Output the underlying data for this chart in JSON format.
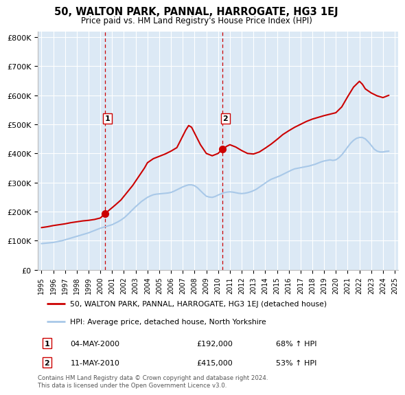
{
  "title": "50, WALTON PARK, PANNAL, HARROGATE, HG3 1EJ",
  "subtitle": "Price paid vs. HM Land Registry's House Price Index (HPI)",
  "ylabel_ticks": [
    "£0",
    "£100K",
    "£200K",
    "£300K",
    "£400K",
    "£500K",
    "£600K",
    "£700K",
    "£800K"
  ],
  "ytick_values": [
    0,
    100000,
    200000,
    300000,
    400000,
    500000,
    600000,
    700000,
    800000
  ],
  "ylim": [
    0,
    820000
  ],
  "xlim_start": 1994.7,
  "xlim_end": 2025.3,
  "sale1_year": 2000.37,
  "sale1_price": 192000,
  "sale1_label": "1",
  "sale1_date": "04-MAY-2000",
  "sale1_hpi": "68% ↑ HPI",
  "sale2_year": 2010.37,
  "sale2_price": 415000,
  "sale2_label": "2",
  "sale2_date": "11-MAY-2010",
  "sale2_hpi": "53% ↑ HPI",
  "hpi_color": "#a8c8e8",
  "price_color": "#cc0000",
  "sale_dot_color": "#cc0000",
  "background_color": "#dce9f5",
  "grid_color": "#ffffff",
  "legend_label_price": "50, WALTON PARK, PANNAL, HARROGATE, HG3 1EJ (detached house)",
  "legend_label_hpi": "HPI: Average price, detached house, North Yorkshire",
  "footer": "Contains HM Land Registry data © Crown copyright and database right 2024.\nThis data is licensed under the Open Government Licence v3.0.",
  "hpi_data_x": [
    1995.0,
    1995.25,
    1995.5,
    1995.75,
    1996.0,
    1996.25,
    1996.5,
    1996.75,
    1997.0,
    1997.25,
    1997.5,
    1997.75,
    1998.0,
    1998.25,
    1998.5,
    1998.75,
    1999.0,
    1999.25,
    1999.5,
    1999.75,
    2000.0,
    2000.25,
    2000.5,
    2000.75,
    2001.0,
    2001.25,
    2001.5,
    2001.75,
    2002.0,
    2002.25,
    2002.5,
    2002.75,
    2003.0,
    2003.25,
    2003.5,
    2003.75,
    2004.0,
    2004.25,
    2004.5,
    2004.75,
    2005.0,
    2005.25,
    2005.5,
    2005.75,
    2006.0,
    2006.25,
    2006.5,
    2006.75,
    2007.0,
    2007.25,
    2007.5,
    2007.75,
    2008.0,
    2008.25,
    2008.5,
    2008.75,
    2009.0,
    2009.25,
    2009.5,
    2009.75,
    2010.0,
    2010.25,
    2010.5,
    2010.75,
    2011.0,
    2011.25,
    2011.5,
    2011.75,
    2012.0,
    2012.25,
    2012.5,
    2012.75,
    2013.0,
    2013.25,
    2013.5,
    2013.75,
    2014.0,
    2014.25,
    2014.5,
    2014.75,
    2015.0,
    2015.25,
    2015.5,
    2015.75,
    2016.0,
    2016.25,
    2016.5,
    2016.75,
    2017.0,
    2017.25,
    2017.5,
    2017.75,
    2018.0,
    2018.25,
    2018.5,
    2018.75,
    2019.0,
    2019.25,
    2019.5,
    2019.75,
    2020.0,
    2020.25,
    2020.5,
    2020.75,
    2021.0,
    2021.25,
    2021.5,
    2021.75,
    2022.0,
    2022.25,
    2022.5,
    2022.75,
    2023.0,
    2023.25,
    2023.5,
    2023.75,
    2024.0,
    2024.25,
    2024.5
  ],
  "hpi_data_y": [
    90000,
    91000,
    92000,
    93000,
    94000,
    96000,
    98000,
    100000,
    103000,
    106000,
    109000,
    112000,
    115000,
    118000,
    121000,
    124000,
    127000,
    131000,
    135000,
    139000,
    143000,
    146000,
    149000,
    152000,
    155000,
    160000,
    165000,
    171000,
    178000,
    187000,
    197000,
    207000,
    217000,
    226000,
    235000,
    242000,
    249000,
    254000,
    258000,
    260000,
    261000,
    262000,
    263000,
    264000,
    266000,
    270000,
    275000,
    280000,
    285000,
    289000,
    292000,
    292000,
    289000,
    282000,
    272000,
    262000,
    253000,
    250000,
    249000,
    252000,
    257000,
    261000,
    265000,
    267000,
    268000,
    267000,
    265000,
    263000,
    262000,
    263000,
    265000,
    268000,
    272000,
    277000,
    284000,
    291000,
    298000,
    305000,
    311000,
    315000,
    319000,
    323000,
    328000,
    333000,
    338000,
    343000,
    347000,
    349000,
    351000,
    353000,
    355000,
    357000,
    360000,
    363000,
    367000,
    371000,
    374000,
    376000,
    378000,
    376000,
    378000,
    385000,
    395000,
    408000,
    422000,
    435000,
    445000,
    452000,
    455000,
    455000,
    450000,
    440000,
    428000,
    415000,
    408000,
    405000,
    405000,
    407000,
    408000
  ],
  "price_data_x": [
    1995.0,
    1995.5,
    1996.0,
    1996.5,
    1997.0,
    1997.5,
    1998.0,
    1998.5,
    1999.0,
    1999.5,
    2000.0,
    2000.37,
    2000.75,
    2001.25,
    2001.75,
    2002.25,
    2002.75,
    2003.25,
    2003.75,
    2004.0,
    2004.5,
    2005.0,
    2005.5,
    2006.0,
    2006.5,
    2007.0,
    2007.25,
    2007.5,
    2007.75,
    2008.0,
    2008.5,
    2009.0,
    2009.5,
    2010.0,
    2010.37,
    2010.75,
    2011.0,
    2011.5,
    2012.0,
    2012.5,
    2013.0,
    2013.5,
    2014.0,
    2014.5,
    2015.0,
    2015.5,
    2016.0,
    2016.5,
    2017.0,
    2017.5,
    2018.0,
    2018.5,
    2019.0,
    2019.5,
    2020.0,
    2020.5,
    2021.0,
    2021.5,
    2022.0,
    2022.25,
    2022.5,
    2023.0,
    2023.5,
    2024.0,
    2024.5
  ],
  "price_data_y": [
    145000,
    148000,
    152000,
    155000,
    158000,
    162000,
    165000,
    168000,
    170000,
    173000,
    178000,
    192000,
    205000,
    222000,
    240000,
    265000,
    290000,
    320000,
    350000,
    368000,
    382000,
    390000,
    398000,
    408000,
    420000,
    460000,
    480000,
    496000,
    490000,
    470000,
    430000,
    400000,
    392000,
    400000,
    415000,
    425000,
    430000,
    422000,
    410000,
    400000,
    398000,
    405000,
    418000,
    432000,
    448000,
    465000,
    478000,
    490000,
    500000,
    510000,
    518000,
    524000,
    530000,
    535000,
    540000,
    560000,
    595000,
    628000,
    648000,
    638000,
    622000,
    608000,
    598000,
    592000,
    600000
  ]
}
